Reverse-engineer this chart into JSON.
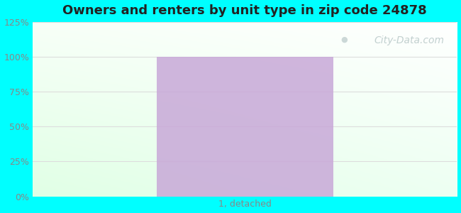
{
  "title": "Owners and renters by unit type in zip code 24878",
  "categories": [
    "1, detached"
  ],
  "values": [
    100
  ],
  "bar_color": "#c8a8d8",
  "bar_alpha": 0.85,
  "ylim": [
    0,
    125
  ],
  "yticks": [
    0,
    25,
    50,
    75,
    100,
    125
  ],
  "ytick_labels": [
    "0%",
    "25%",
    "50%",
    "75%",
    "100%",
    "125%"
  ],
  "title_fontsize": 13,
  "tick_fontsize": 9,
  "xlabel_fontsize": 9,
  "fig_bg_color": "#00ffff",
  "plot_bg_left_color": "#e8ffe8",
  "plot_bg_right_color": "#f8fff8",
  "plot_bg_top_color": "#f8fff8",
  "plot_bg_bottom_color": "#d8ffe8",
  "watermark_text": "City-Data.com",
  "watermark_color": "#b8c8c8",
  "watermark_fontsize": 10,
  "grid_color": "#dddddd",
  "tick_color": "#888888",
  "title_color": "#222222"
}
